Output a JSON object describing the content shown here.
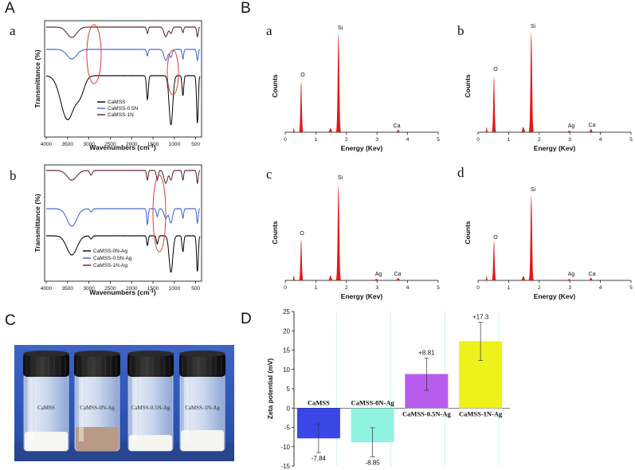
{
  "panels": {
    "A": "A",
    "B": "B",
    "C": "C",
    "D": "D"
  },
  "ir": {
    "x_ticks": [
      "4000",
      "3500",
      "3000",
      "2500",
      "2000",
      "1500",
      "1000",
      "500"
    ],
    "xlabel_main": "Wavenumbers (cm",
    "xlabel_sup": "-1",
    "xlabel_end": ")",
    "ylabel": "Transmittance (%)",
    "color_black": "#000000",
    "color_blue": "#3a64d8",
    "color_brown": "#5a1d22",
    "highlight": "#e03a3a",
    "a": {
      "label": "a",
      "legend": [
        "CaMSS",
        "CaMSS-0.5N",
        "CaMSS-1N"
      ]
    },
    "b": {
      "label": "b",
      "legend": [
        "CaMSS-0N-Ag",
        "CaMSS-0.5N-Ag",
        "CaMSS-1N-Ag"
      ]
    }
  },
  "eds": {
    "x_ticks": [
      "0",
      "1",
      "2",
      "3",
      "4",
      "5"
    ],
    "xlabel": "Energy (Kev)",
    "ylabel": "Counts",
    "fill": "#e41818",
    "a": {
      "label": "a",
      "peaks": {
        "O": "O",
        "Si": "Si",
        "Ca": "Ca"
      }
    },
    "b": {
      "label": "b",
      "peaks": {
        "O": "O",
        "Si": "Si",
        "Ag": "Ag",
        "Ca": "Ca"
      }
    },
    "c": {
      "label": "c",
      "peaks": {
        "O": "O",
        "Si": "Si",
        "Ag": "Ag",
        "Ca": "Ca"
      }
    },
    "d": {
      "label": "d",
      "peaks": {
        "O": "O",
        "Si": "Si",
        "Ag": "Ag",
        "Ca": "Ca"
      }
    }
  },
  "photo": {
    "vials": [
      "CaMSS",
      "CaMSS-0N-Ag",
      "CaMSS-0.5N-Ag",
      "CaMSS-1N-Ag"
    ]
  },
  "chart_data": {
    "type": "bar",
    "title": "",
    "xlabel": "",
    "ylabel": "Zeta potential (mV)",
    "ylim": [
      -15,
      25
    ],
    "y_ticks": [
      -15,
      -10,
      -5,
      0,
      5,
      10,
      15,
      20,
      25
    ],
    "categories": [
      "CaMSS",
      "CaMSS-0N-Ag",
      "CaMSS-0.5N-Ag",
      "CaMSS-1N-Ag"
    ],
    "values": [
      -7.84,
      -8.85,
      8.81,
      17.3
    ],
    "value_labels": [
      "-7.84",
      "-8.85",
      "+8.81",
      "+17.3"
    ],
    "error_low": [
      -11.5,
      -12.6,
      4.6,
      12.3
    ],
    "error_high": [
      -4.1,
      -5.1,
      12.9,
      22.2
    ],
    "colors": [
      "#3a47e6",
      "#8ff3e0",
      "#b85cee",
      "#eef21a"
    ]
  }
}
